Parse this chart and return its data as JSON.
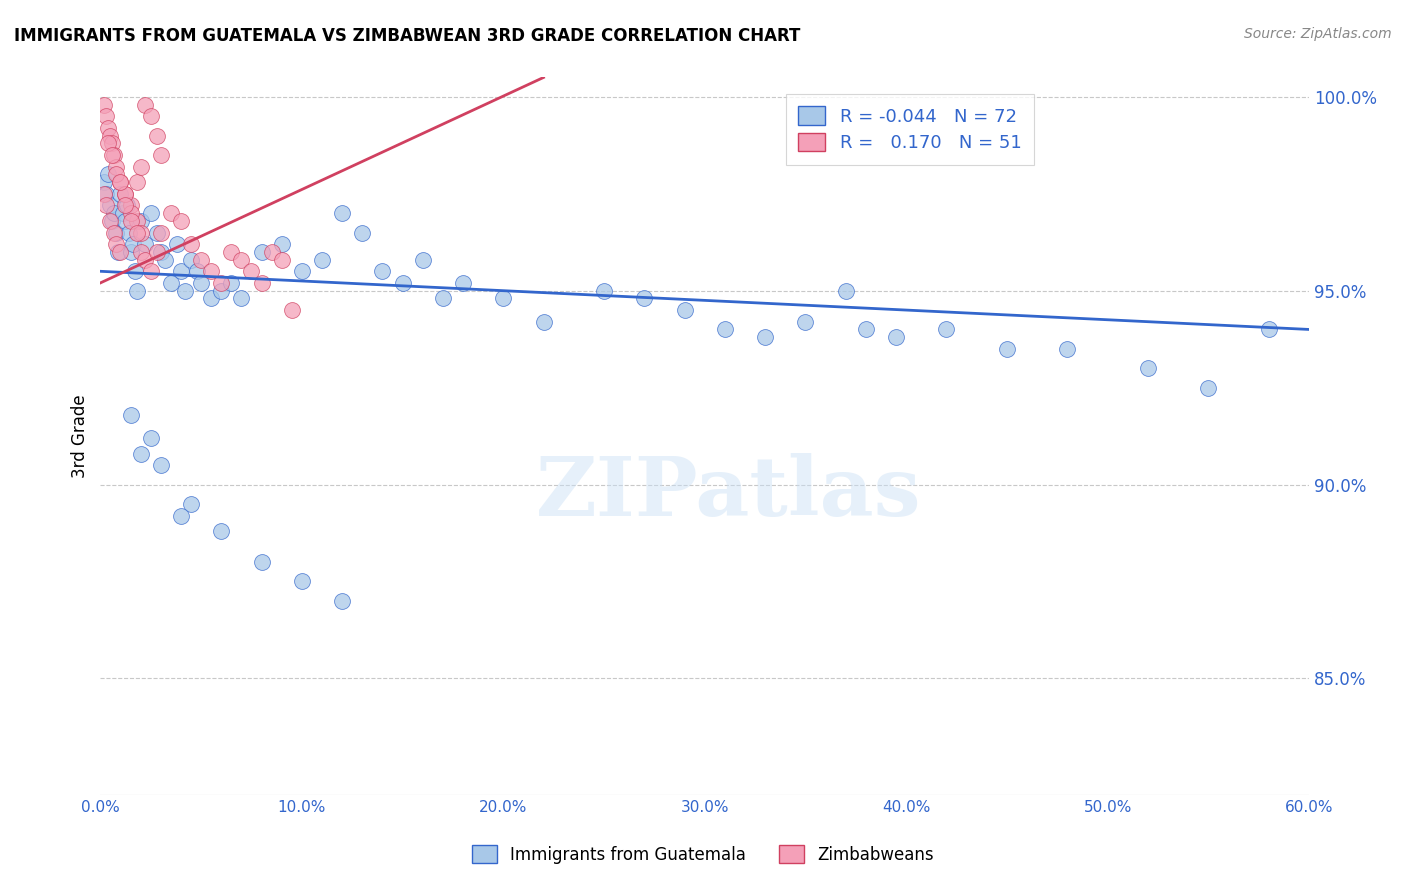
{
  "title": "IMMIGRANTS FROM GUATEMALA VS ZIMBABWEAN 3RD GRADE CORRELATION CHART",
  "source": "Source: ZipAtlas.com",
  "ylabel": "3rd Grade",
  "xlim": [
    0.0,
    0.6
  ],
  "ylim": [
    0.82,
    1.005
  ],
  "xtick_labels": [
    "0.0%",
    "10.0%",
    "20.0%",
    "30.0%",
    "40.0%",
    "50.0%",
    "60.0%"
  ],
  "xtick_values": [
    0.0,
    0.1,
    0.2,
    0.3,
    0.4,
    0.5,
    0.6
  ],
  "ytick_labels": [
    "85.0%",
    "90.0%",
    "95.0%",
    "100.0%"
  ],
  "ytick_values": [
    0.85,
    0.9,
    0.95,
    1.0
  ],
  "blue_color": "#a8c8e8",
  "pink_color": "#f4a0b8",
  "trendline_blue": "#3366cc",
  "trendline_pink": "#d04060",
  "legend_blue_R": "-0.044",
  "legend_blue_N": "72",
  "legend_pink_R": "0.170",
  "legend_pink_N": "51",
  "watermark": "ZIPatlas",
  "legend_label_blue": "Immigrants from Guatemala",
  "legend_label_pink": "Zimbabweans",
  "blue_trendline_y0": 0.955,
  "blue_trendline_y1": 0.94,
  "pink_trendline_x0": 0.0,
  "pink_trendline_x1": 0.22,
  "pink_trendline_y0": 0.952,
  "pink_trendline_y1": 1.005,
  "blue_scatter_x": [
    0.002,
    0.003,
    0.004,
    0.005,
    0.006,
    0.007,
    0.008,
    0.009,
    0.01,
    0.011,
    0.012,
    0.013,
    0.014,
    0.015,
    0.016,
    0.017,
    0.018,
    0.02,
    0.022,
    0.025,
    0.028,
    0.03,
    0.032,
    0.035,
    0.038,
    0.04,
    0.042,
    0.045,
    0.048,
    0.05,
    0.055,
    0.06,
    0.065,
    0.07,
    0.08,
    0.09,
    0.1,
    0.11,
    0.12,
    0.13,
    0.14,
    0.15,
    0.16,
    0.17,
    0.18,
    0.2,
    0.22,
    0.25,
    0.27,
    0.29,
    0.31,
    0.33,
    0.35,
    0.37,
    0.38,
    0.395,
    0.42,
    0.45,
    0.48,
    0.52,
    0.55,
    0.58,
    0.02,
    0.025,
    0.03,
    0.015,
    0.045,
    0.04,
    0.06,
    0.08,
    0.1,
    0.12
  ],
  "blue_scatter_y": [
    0.978,
    0.975,
    0.98,
    0.972,
    0.968,
    0.97,
    0.965,
    0.96,
    0.975,
    0.97,
    0.968,
    0.972,
    0.965,
    0.96,
    0.962,
    0.955,
    0.95,
    0.968,
    0.962,
    0.97,
    0.965,
    0.96,
    0.958,
    0.952,
    0.962,
    0.955,
    0.95,
    0.958,
    0.955,
    0.952,
    0.948,
    0.95,
    0.952,
    0.948,
    0.96,
    0.962,
    0.955,
    0.958,
    0.97,
    0.965,
    0.955,
    0.952,
    0.958,
    0.948,
    0.952,
    0.948,
    0.942,
    0.95,
    0.948,
    0.945,
    0.94,
    0.938,
    0.942,
    0.95,
    0.94,
    0.938,
    0.94,
    0.935,
    0.935,
    0.93,
    0.925,
    0.94,
    0.908,
    0.912,
    0.905,
    0.918,
    0.895,
    0.892,
    0.888,
    0.88,
    0.875,
    0.87
  ],
  "pink_scatter_x": [
    0.002,
    0.003,
    0.004,
    0.005,
    0.006,
    0.007,
    0.008,
    0.01,
    0.012,
    0.015,
    0.018,
    0.02,
    0.022,
    0.025,
    0.028,
    0.03,
    0.002,
    0.003,
    0.005,
    0.007,
    0.008,
    0.01,
    0.012,
    0.015,
    0.018,
    0.02,
    0.004,
    0.006,
    0.008,
    0.01,
    0.012,
    0.015,
    0.018,
    0.02,
    0.022,
    0.025,
    0.028,
    0.03,
    0.035,
    0.04,
    0.045,
    0.05,
    0.055,
    0.06,
    0.065,
    0.07,
    0.075,
    0.08,
    0.085,
    0.09,
    0.095
  ],
  "pink_scatter_y": [
    0.998,
    0.995,
    0.992,
    0.99,
    0.988,
    0.985,
    0.982,
    0.978,
    0.975,
    0.972,
    0.968,
    0.965,
    0.998,
    0.995,
    0.99,
    0.985,
    0.975,
    0.972,
    0.968,
    0.965,
    0.962,
    0.96,
    0.975,
    0.97,
    0.978,
    0.982,
    0.988,
    0.985,
    0.98,
    0.978,
    0.972,
    0.968,
    0.965,
    0.96,
    0.958,
    0.955,
    0.96,
    0.965,
    0.97,
    0.968,
    0.962,
    0.958,
    0.955,
    0.952,
    0.96,
    0.958,
    0.955,
    0.952,
    0.96,
    0.958,
    0.945
  ]
}
